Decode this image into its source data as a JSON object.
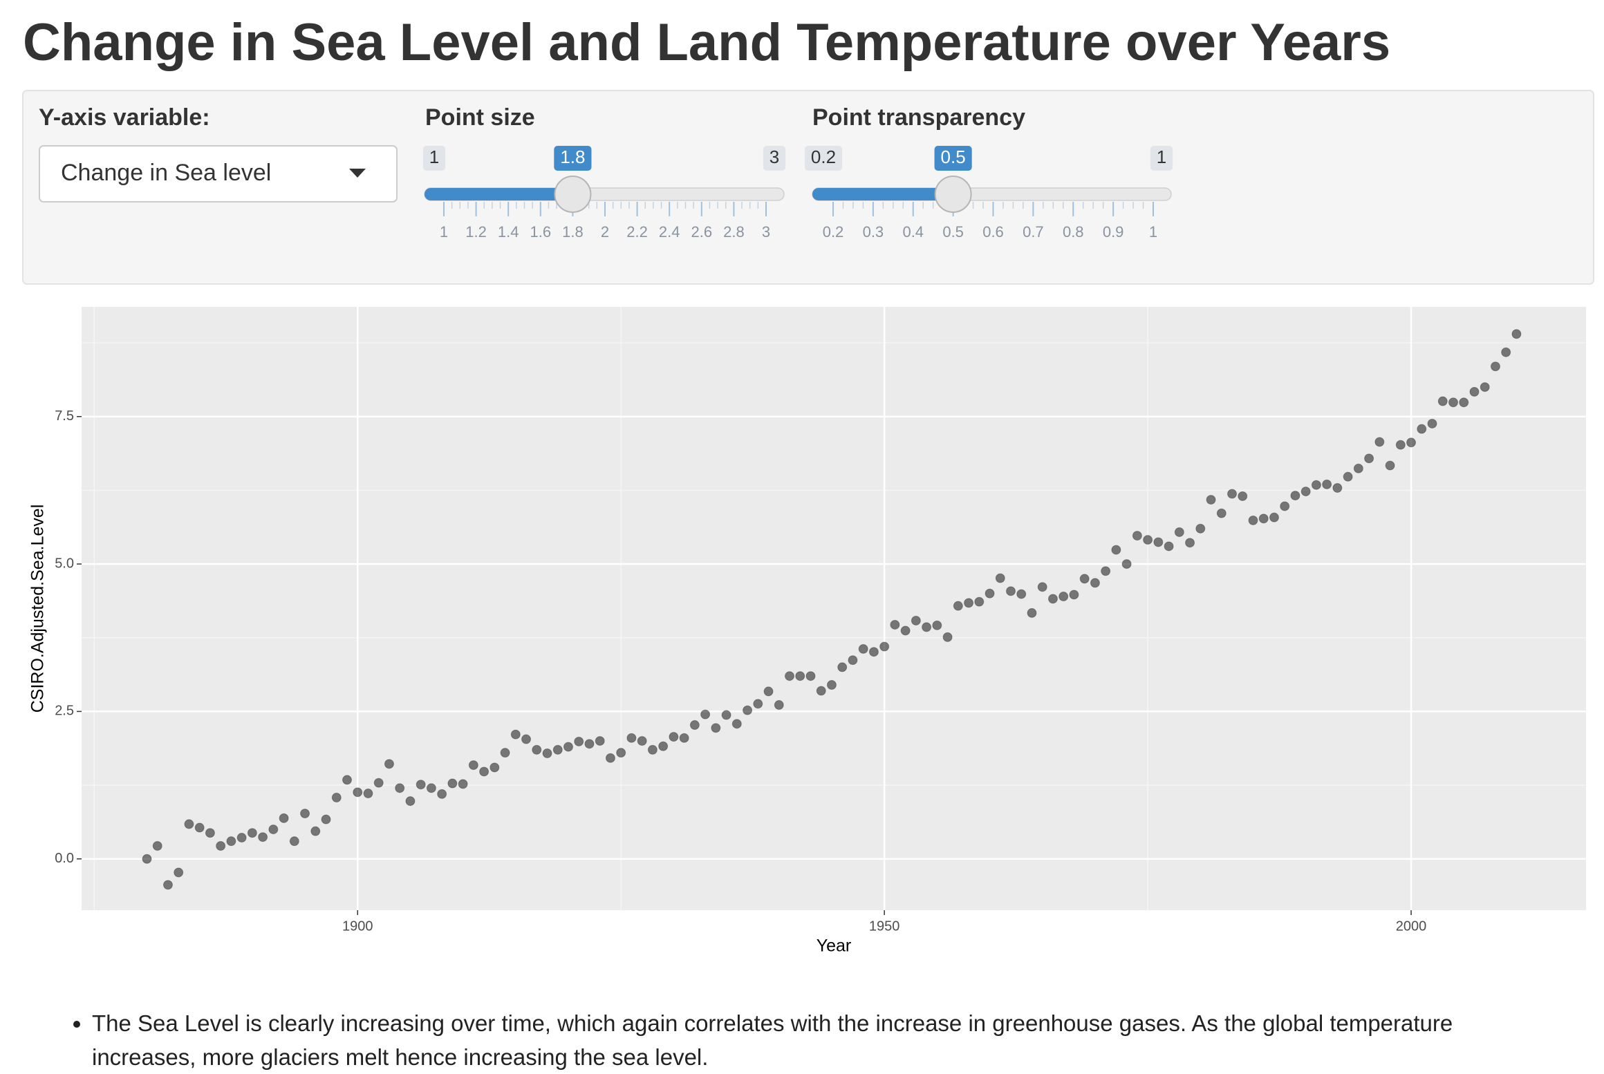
{
  "header": {
    "title": "Change in Sea Level and Land Temperature over Years"
  },
  "controls": {
    "y_variable": {
      "label": "Y-axis variable:",
      "selected": "Change in Sea level"
    },
    "point_size": {
      "label": "Point size",
      "min": 1,
      "max": 3,
      "value": 1.8,
      "ticks": [
        1,
        1.2,
        1.4,
        1.6,
        1.8,
        2,
        2.2,
        2.4,
        2.6,
        2.8,
        3
      ]
    },
    "point_transparency": {
      "label": "Point transparency",
      "min": 0.2,
      "max": 1,
      "value": 0.5,
      "ticks": [
        0.2,
        0.3,
        0.4,
        0.5,
        0.6,
        0.7,
        0.8,
        0.9,
        1
      ]
    }
  },
  "chart_data": {
    "type": "scatter",
    "x_label": "Year",
    "y_label": "CSIRO.Adjusted.Sea.Level",
    "color": "#000000",
    "grid": true,
    "xlim": [
      1873.8,
      2016.6
    ],
    "ylim": [
      -0.87,
      9.36
    ],
    "xticks": [
      1900,
      1950,
      2000
    ],
    "yticks": [
      {
        "value": 0,
        "label": "0.0"
      },
      2.5,
      {
        "value": 5,
        "label": "5.0"
      },
      7.5
    ],
    "x": [
      1880,
      1881,
      1882,
      1883,
      1884,
      1885,
      1886,
      1887,
      1888,
      1889,
      1890,
      1891,
      1892,
      1893,
      1894,
      1895,
      1896,
      1897,
      1898,
      1899,
      1900,
      1901,
      1902,
      1903,
      1904,
      1905,
      1906,
      1907,
      1908,
      1909,
      1910,
      1911,
      1912,
      1913,
      1914,
      1915,
      1916,
      1917,
      1918,
      1919,
      1920,
      1921,
      1922,
      1923,
      1924,
      1925,
      1926,
      1927,
      1928,
      1929,
      1930,
      1931,
      1932,
      1933,
      1934,
      1935,
      1936,
      1937,
      1938,
      1939,
      1940,
      1941,
      1942,
      1943,
      1944,
      1945,
      1946,
      1947,
      1948,
      1949,
      1950,
      1951,
      1952,
      1953,
      1954,
      1955,
      1956,
      1957,
      1958,
      1959,
      1960,
      1961,
      1962,
      1963,
      1964,
      1965,
      1966,
      1967,
      1968,
      1969,
      1970,
      1971,
      1972,
      1973,
      1974,
      1975,
      1976,
      1977,
      1978,
      1979,
      1980,
      1981,
      1982,
      1983,
      1984,
      1985,
      1986,
      1987,
      1988,
      1989,
      1990,
      1991,
      1992,
      1993,
      1994,
      1995,
      1996,
      1997,
      1998,
      1999,
      2000,
      2001,
      2002,
      2003,
      2004,
      2005,
      2006,
      2007,
      2008,
      2009,
      2010
    ],
    "values": [
      0.0,
      0.22,
      -0.44,
      -0.23,
      0.59,
      0.53,
      0.44,
      0.22,
      0.3,
      0.36,
      0.44,
      0.37,
      0.5,
      0.69,
      0.3,
      0.77,
      0.47,
      0.67,
      1.04,
      1.34,
      1.13,
      1.11,
      1.29,
      1.61,
      1.2,
      0.98,
      1.26,
      1.2,
      1.1,
      1.28,
      1.27,
      1.59,
      1.48,
      1.55,
      1.8,
      2.11,
      2.03,
      1.85,
      1.79,
      1.85,
      1.9,
      1.99,
      1.95,
      2.0,
      1.71,
      1.8,
      2.05,
      2.0,
      1.85,
      1.91,
      2.07,
      2.05,
      2.27,
      2.45,
      2.22,
      2.44,
      2.29,
      2.52,
      2.63,
      2.84,
      2.61,
      3.1,
      3.1,
      3.1,
      2.85,
      2.95,
      3.25,
      3.37,
      3.56,
      3.51,
      3.6,
      3.97,
      3.87,
      4.04,
      3.93,
      3.96,
      3.76,
      4.29,
      4.34,
      4.36,
      4.5,
      4.76,
      4.54,
      4.49,
      4.17,
      4.61,
      4.41,
      4.45,
      4.48,
      4.75,
      4.68,
      4.88,
      5.24,
      5.0,
      5.48,
      5.41,
      5.37,
      5.3,
      5.54,
      5.36,
      5.6,
      6.09,
      5.86,
      6.19,
      6.15,
      5.74,
      5.77,
      5.79,
      5.98,
      6.16,
      6.23,
      6.34,
      6.35,
      6.29,
      6.48,
      6.62,
      6.79,
      7.07,
      6.67,
      7.02,
      7.06,
      7.29,
      7.38,
      7.76,
      7.74,
      7.74,
      7.92,
      8.0,
      8.35,
      8.59,
      8.9
    ]
  },
  "notes": [
    "The Sea Level is clearly increasing over time, which again correlates with the increase in greenhouse gases. As the global temperature increases, more glaciers melt hence increasing the sea level."
  ]
}
